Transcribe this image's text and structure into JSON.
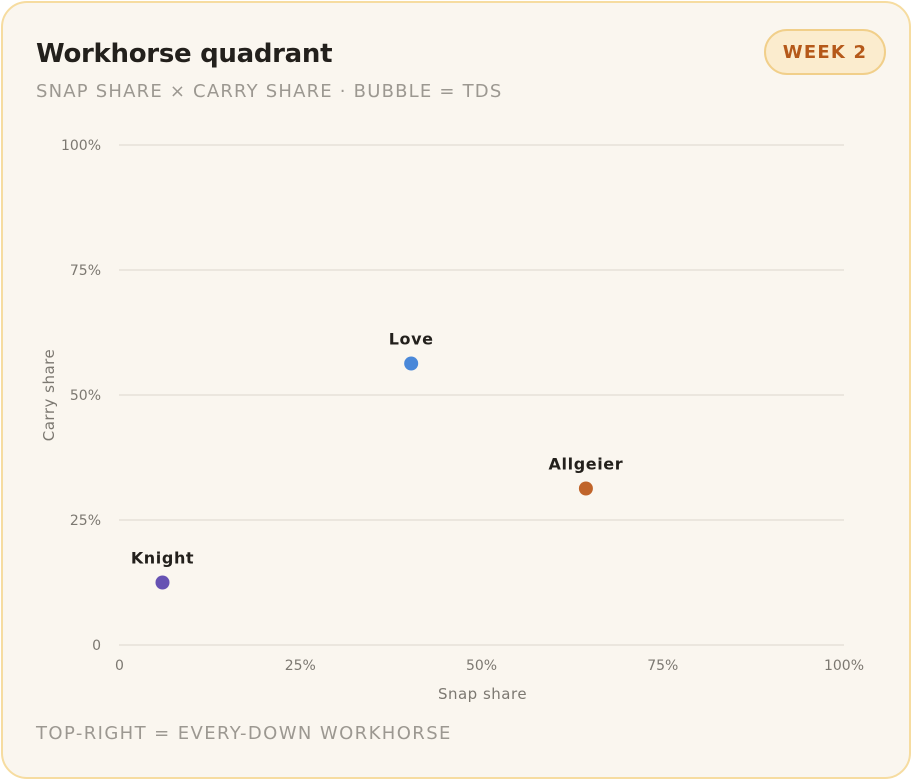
{
  "header": {
    "title": "Workhorse quadrant",
    "subtitle": "SNAP SHARE × CARRY SHARE · BUBBLE = TDS",
    "badge": "WEEK 2"
  },
  "footer": {
    "note": "TOP-RIGHT = EVERY-DOWN WORKHORSE"
  },
  "chart_data": {
    "type": "scatter",
    "xlabel": "Snap share",
    "ylabel": "Carry share",
    "xlim": [
      0,
      100
    ],
    "ylim": [
      0,
      100
    ],
    "x_ticks": [
      "0",
      "25%",
      "50%",
      "75%",
      "100%"
    ],
    "y_ticks": [
      "0",
      "25%",
      "50%",
      "75%",
      "100%"
    ],
    "grid": "horizontal",
    "points": [
      {
        "label": "Love",
        "x": 40.3,
        "y": 56.3,
        "color": "#4a88d9"
      },
      {
        "label": "Allgeier",
        "x": 64.4,
        "y": 31.3,
        "color": "#c0642a"
      },
      {
        "label": "Knight",
        "x": 6.0,
        "y": 12.5,
        "color": "#6652b3"
      }
    ]
  }
}
